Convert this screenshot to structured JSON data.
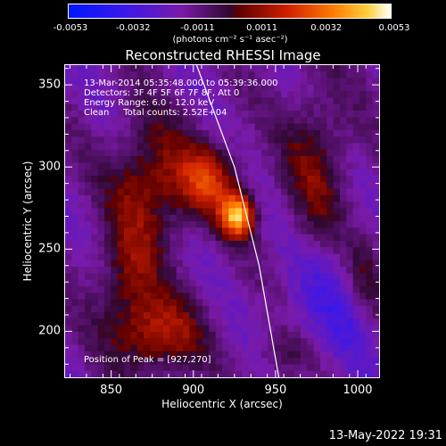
{
  "chart_data": {
    "type": "heatmap",
    "title": "Reconstructed RHESSI Image",
    "xlabel": "Heliocentric X (arcsec)",
    "ylabel": "Heliocentric Y (arcsec)",
    "xlim": [
      822,
      1013
    ],
    "ylim": [
      172,
      362
    ],
    "x_ticks": [
      850,
      900,
      950,
      1000
    ],
    "y_ticks": [
      200,
      250,
      300,
      350
    ],
    "colorbar": {
      "ticks": [
        "-0.0053",
        "-0.0032",
        "-0.0011",
        "0.0011",
        "0.0032",
        "0.0053"
      ],
      "range": [
        -0.0053,
        0.0053
      ],
      "units": "(photons cm⁻² s⁻¹ asec⁻²)"
    },
    "info": {
      "time": "13-Mar-2014 05:35:48.000 to 05:39:36.000",
      "detectors": "Detectors: 3F 4F 5F 6F 7F 8F, Att 0",
      "energy": "Energy Range: 6.0 - 12.0 keV",
      "clean": "Clean     Total counts: 2.52E+04"
    },
    "peak": {
      "label": "Position of Peak = [927,270]",
      "x": 927,
      "y": 270,
      "value": 0.0053
    },
    "sources": [
      {
        "x": 927,
        "y": 270,
        "amp": 1.0,
        "sx": 7,
        "sy": 9
      },
      {
        "x": 908,
        "y": 292,
        "amp": 0.6,
        "sx": 14,
        "sy": 16
      },
      {
        "x": 872,
        "y": 290,
        "amp": 0.45,
        "sx": 16,
        "sy": 28
      },
      {
        "x": 860,
        "y": 230,
        "amp": 0.35,
        "sx": 14,
        "sy": 25
      },
      {
        "x": 880,
        "y": 198,
        "amp": 0.5,
        "sx": 18,
        "sy": 16
      },
      {
        "x": 975,
        "y": 300,
        "amp": 0.35,
        "sx": 14,
        "sy": 35
      },
      {
        "x": 1005,
        "y": 232,
        "amp": 0.3,
        "sx": 8,
        "sy": 20
      },
      {
        "x": 955,
        "y": 185,
        "amp": 0.25,
        "sx": 12,
        "sy": 10
      }
    ],
    "limb_arc": [
      {
        "x": 902,
        "y": 362
      },
      {
        "x": 925,
        "y": 300
      },
      {
        "x": 940,
        "y": 240
      },
      {
        "x": 952,
        "y": 172
      }
    ]
  },
  "footer": {
    "date": "13-May-2022 19:31"
  }
}
